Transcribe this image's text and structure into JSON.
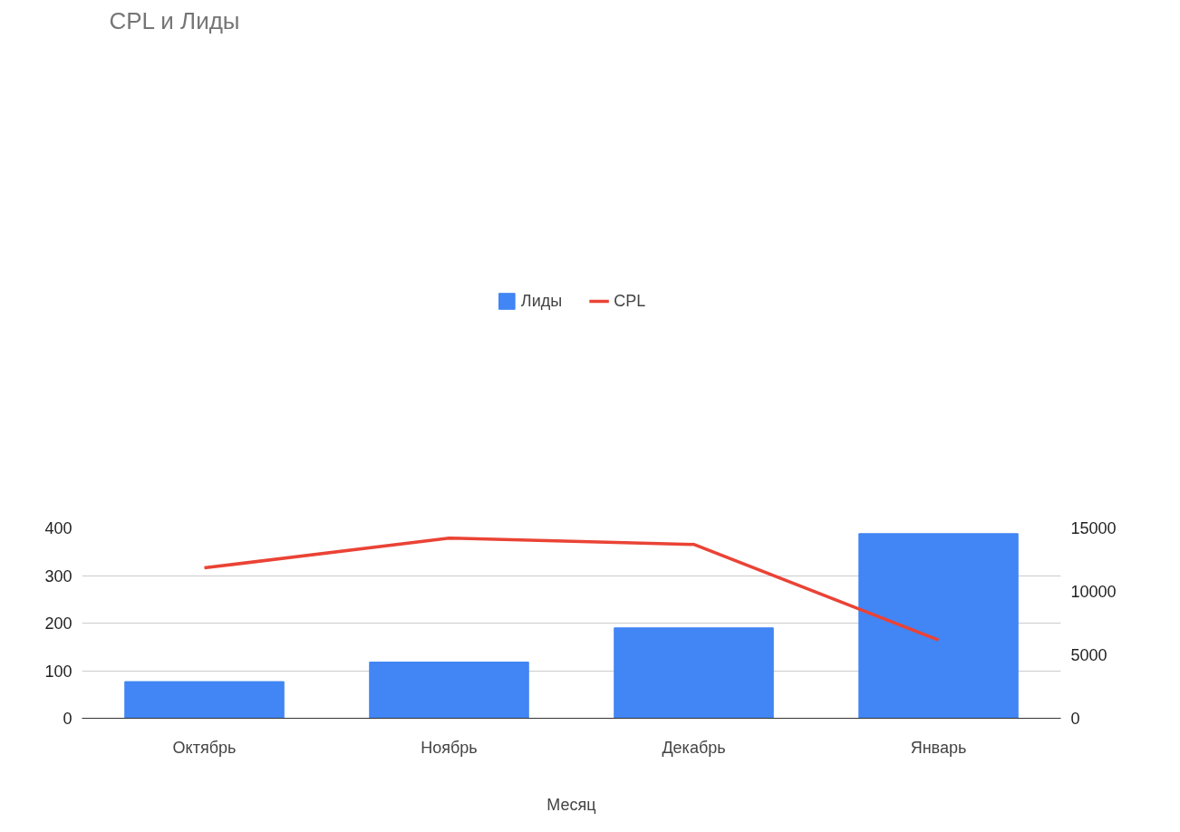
{
  "chart_data": {
    "type": "bar",
    "title": "CPL и Лиды",
    "xlabel": "Месяц",
    "categories": [
      "Октябрь",
      "Ноябрь",
      "Декабрь",
      "Январь"
    ],
    "series": [
      {
        "name": "Лиды",
        "color": "#4285f4",
        "values": [
          77,
          118,
          190,
          388
        ]
      },
      {
        "name": "CPL",
        "type": "line",
        "axis": "y2",
        "color": "#ea4335",
        "values": [
          11850,
          14200,
          13700,
          6170
        ]
      }
    ],
    "ylim": [
      0,
      400
    ],
    "yticks": [
      0,
      100,
      200,
      300,
      400
    ],
    "y2lim": [
      0,
      15000
    ],
    "y2ticks": [
      0,
      5000,
      10000,
      15000
    ],
    "grid": "y",
    "legend": "top"
  }
}
